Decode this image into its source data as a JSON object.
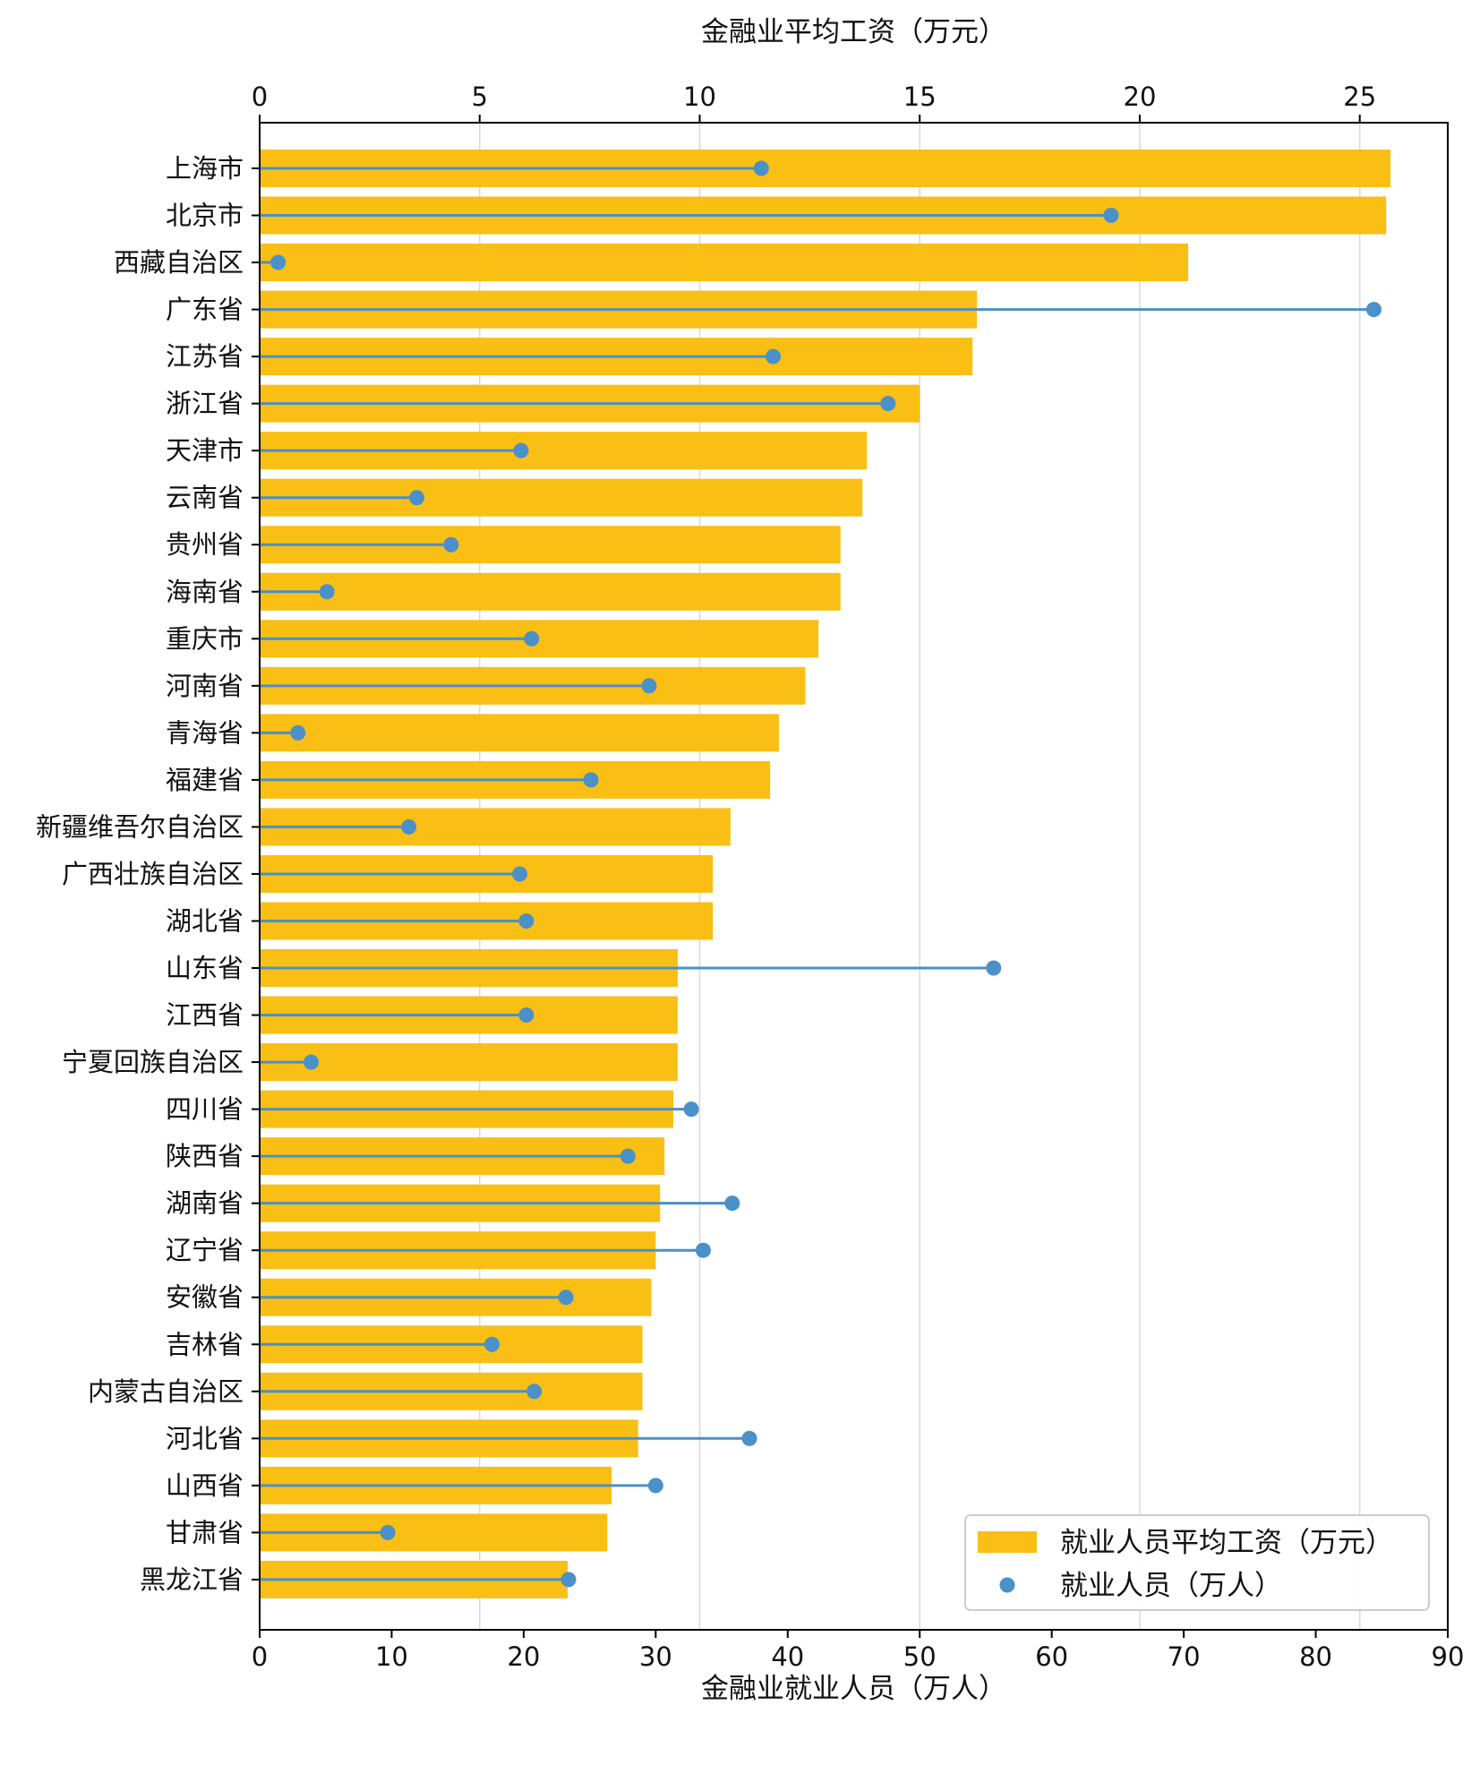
{
  "chart_data": {
    "type": "bar",
    "title": "",
    "top_xlabel": "金融业平均工资（万元）",
    "bottom_xlabel": "金融业就业人员（万人）",
    "top_xlim": [
      0,
      27
    ],
    "top_ticks": [
      0,
      5,
      10,
      15,
      20,
      25
    ],
    "bottom_xlim": [
      0,
      90
    ],
    "bottom_ticks": [
      0,
      10,
      20,
      30,
      40,
      50,
      60,
      70,
      80,
      90
    ],
    "grid": "vertical",
    "legend_position": "bottom-right",
    "legend": [
      {
        "label": "就业人员平均工资（万元）",
        "marker": "bar"
      },
      {
        "label": "就业人员（万人）",
        "marker": "dot"
      }
    ],
    "colors": {
      "bar": "#F9BF14",
      "dot": "#4A90C9",
      "grid": "#D9D9D9"
    },
    "categories": [
      "上海市",
      "北京市",
      "西藏自治区",
      "广东省",
      "江苏省",
      "浙江省",
      "天津市",
      "云南省",
      "贵州省",
      "海南省",
      "重庆市",
      "河南省",
      "青海省",
      "福建省",
      "新疆维吾尔自治区",
      "广西壮族自治区",
      "湖北省",
      "山东省",
      "江西省",
      "宁夏回族自治区",
      "四川省",
      "陕西省",
      "湖南省",
      "辽宁省",
      "安徽省",
      "吉林省",
      "内蒙古自治区",
      "河北省",
      "山西省",
      "甘肃省",
      "黑龙江省"
    ],
    "series": [
      {
        "name": "就业人员平均工资（万元）",
        "axis": "top",
        "type": "bar",
        "values": [
          25.7,
          25.6,
          21.1,
          16.3,
          16.2,
          15.0,
          13.8,
          13.7,
          13.2,
          13.2,
          12.7,
          12.4,
          11.8,
          11.6,
          10.7,
          10.3,
          10.3,
          9.5,
          9.5,
          9.5,
          9.4,
          9.2,
          9.1,
          9.0,
          8.9,
          8.7,
          8.7,
          8.6,
          8.0,
          7.9,
          7.0
        ]
      },
      {
        "name": "就业人员（万人）",
        "axis": "bottom",
        "type": "lollipop",
        "values": [
          38.0,
          64.5,
          1.4,
          84.4,
          38.9,
          47.6,
          19.8,
          11.9,
          14.5,
          5.1,
          20.6,
          29.5,
          2.9,
          25.1,
          11.3,
          19.7,
          20.2,
          55.6,
          20.2,
          3.9,
          32.7,
          27.9,
          35.8,
          33.6,
          23.2,
          17.6,
          20.8,
          37.1,
          30.0,
          9.7,
          23.4
        ]
      }
    ]
  }
}
